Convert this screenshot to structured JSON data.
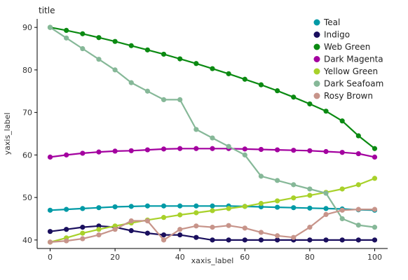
{
  "chart_data": {
    "type": "line",
    "title": "title",
    "xlabel": "xaxis_label",
    "ylabel": "yaxis_label",
    "xlim": [
      -4,
      104
    ],
    "ylim": [
      38,
      92
    ],
    "xticks": [
      0,
      20,
      40,
      60,
      80,
      100
    ],
    "yticks": [
      40,
      50,
      60,
      70,
      80,
      90
    ],
    "legend_position": "top-right",
    "grid": false,
    "x": [
      0,
      5,
      10,
      15,
      20,
      25,
      30,
      35,
      40,
      45,
      50,
      55,
      60,
      65,
      70,
      75,
      80,
      85,
      90,
      95,
      100
    ],
    "series": [
      {
        "name": "Teal",
        "color": "#009aa6",
        "values": [
          47.0,
          47.2,
          47.4,
          47.6,
          47.8,
          47.9,
          48.0,
          48.0,
          48.0,
          48.0,
          48.0,
          48.0,
          47.9,
          47.8,
          47.7,
          47.6,
          47.5,
          47.4,
          47.3,
          47.1,
          47.0
        ]
      },
      {
        "name": "Indigo",
        "color": "#1a0f5e",
        "values": [
          42.0,
          42.5,
          43.0,
          43.3,
          43.0,
          42.2,
          41.6,
          41.2,
          41.2,
          40.6,
          40.0,
          40.0,
          40.0,
          40.0,
          40.0,
          40.0,
          40.0,
          40.0,
          40.0,
          40.0,
          40.0
        ]
      },
      {
        "name": "Web Green",
        "color": "#0b8a12",
        "values": [
          90.0,
          89.3,
          88.5,
          87.6,
          86.7,
          85.7,
          84.7,
          83.7,
          82.6,
          81.5,
          80.3,
          79.1,
          77.8,
          76.5,
          75.1,
          73.6,
          72.0,
          70.3,
          68.0,
          64.5,
          61.5
        ]
      },
      {
        "name": "Dark Magenta",
        "color": "#a3009f",
        "values": [
          59.5,
          60.0,
          60.4,
          60.7,
          60.9,
          61.0,
          61.2,
          61.4,
          61.5,
          61.5,
          61.5,
          61.5,
          61.4,
          61.3,
          61.2,
          61.1,
          61.0,
          60.8,
          60.6,
          60.3,
          59.5
        ]
      },
      {
        "name": "Yellow Green",
        "color": "#a8d12a",
        "values": [
          39.5,
          40.5,
          41.6,
          42.5,
          43.3,
          44.0,
          44.7,
          45.3,
          45.9,
          46.4,
          46.9,
          47.4,
          47.9,
          48.6,
          49.2,
          49.9,
          50.5,
          51.2,
          52.0,
          53.0,
          54.5
        ]
      },
      {
        "name": "Dark Seafoam",
        "color": "#86b898",
        "values": [
          90.0,
          87.5,
          85.0,
          82.5,
          80.0,
          77.0,
          75.0,
          73.0,
          73.0,
          66.0,
          64.0,
          62.0,
          60.0,
          55.0,
          54.0,
          53.0,
          52.0,
          51.0,
          45.0,
          43.5,
          43.0
        ]
      },
      {
        "name": "Rosy Brown",
        "color": "#c7948a",
        "values": [
          39.5,
          39.8,
          40.3,
          41.2,
          42.5,
          44.5,
          44.5,
          40.0,
          42.5,
          43.3,
          43.0,
          43.4,
          42.8,
          41.8,
          41.0,
          40.6,
          43.0,
          46.0,
          47.0,
          47.2,
          47.2
        ]
      }
    ]
  }
}
